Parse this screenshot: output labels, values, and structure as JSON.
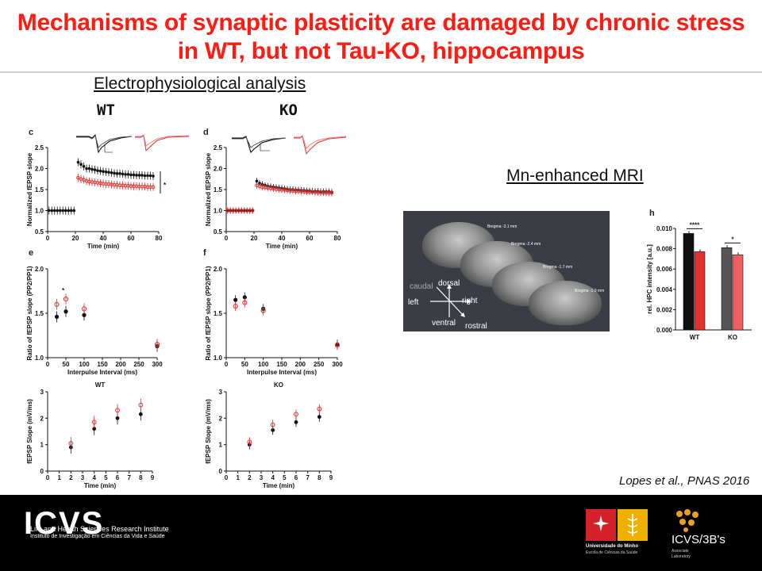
{
  "slide": {
    "title_line1": "Mechanisms of synaptic plasticity are damaged by chronic stress",
    "title_line2": "in WT, but not Tau-KO, hippocampus",
    "section_ephys": "Electrophysiological analysis",
    "section_mri": "Mn-enhanced MRI",
    "group_wt": "WT",
    "group_ko": "KO",
    "citation": "Lopes et al., PNAS 2016"
  },
  "mri": {
    "bregma_labels": [
      "Bregma -3.1 mm",
      "Bregma -2.4 mm",
      "Bregma -1.7 mm",
      "Bregma -1.0 mm"
    ],
    "orientation_labels": [
      "caudal",
      "dorsal",
      "left",
      "right",
      "ventral",
      "rostral"
    ]
  },
  "footer": {
    "icvs_logo_text": "ICVS",
    "icvs_line1": "Life and Health Sciences Research Institute",
    "icvs_line2": "Instituto de Investigação em Ciências da Vida e Saúde",
    "uminho_line1": "Universidade do Minho",
    "uminho_line2": "Escola de Ciências da Saúde",
    "icvs3bs_name": "ICVS/3B's",
    "icvs3bs_sub1": "Associate",
    "icvs3bs_sub2": "Laboratory"
  },
  "colors": {
    "title_red": "#ff1a12",
    "control": "#000000",
    "stress": "#e03030"
  },
  "chart_data": [
    {
      "panel": "c",
      "type": "scatter",
      "xlabel": "Time (min)",
      "ylabel": "Normalized fEPSP slope",
      "xlim": [
        0,
        80
      ],
      "ylim": [
        0.5,
        2.5
      ],
      "xticks": [
        "0",
        "20",
        "40",
        "60",
        "80"
      ],
      "yticks": [
        "0.5",
        "1.0",
        "1.5",
        "2.0",
        "2.5"
      ],
      "annotation": "*",
      "series": [
        {
          "color": "black",
          "x": [
            1,
            3,
            5,
            7,
            9,
            11,
            13,
            15,
            17,
            19,
            22,
            24,
            26,
            28,
            30,
            32,
            34,
            36,
            38,
            40,
            42,
            44,
            46,
            48,
            50,
            52,
            54,
            56,
            58,
            60,
            62,
            64,
            66,
            68,
            70,
            72,
            74,
            76
          ],
          "y": [
            1,
            1,
            1,
            1,
            1,
            1,
            1,
            1,
            1,
            1,
            2.15,
            2.1,
            2.05,
            2.0,
            2.0,
            1.98,
            1.97,
            1.95,
            1.94,
            1.93,
            1.92,
            1.91,
            1.9,
            1.89,
            1.88,
            1.88,
            1.87,
            1.86,
            1.86,
            1.85,
            1.85,
            1.84,
            1.84,
            1.84,
            1.83,
            1.83,
            1.83,
            1.82
          ]
        },
        {
          "color": "red",
          "x": [
            22,
            24,
            26,
            28,
            30,
            32,
            34,
            36,
            38,
            40,
            42,
            44,
            46,
            48,
            50,
            52,
            54,
            56,
            58,
            60,
            62,
            64,
            66,
            68,
            70,
            72,
            74,
            76
          ],
          "y": [
            1.78,
            1.75,
            1.73,
            1.7,
            1.69,
            1.68,
            1.67,
            1.66,
            1.65,
            1.64,
            1.63,
            1.63,
            1.62,
            1.61,
            1.61,
            1.6,
            1.6,
            1.59,
            1.59,
            1.58,
            1.58,
            1.58,
            1.57,
            1.57,
            1.57,
            1.56,
            1.56,
            1.56
          ]
        }
      ]
    },
    {
      "panel": "d",
      "type": "scatter",
      "xlabel": "Time (min)",
      "ylabel": "Normalized fEPSP slope",
      "xlim": [
        0,
        80
      ],
      "ylim": [
        0.5,
        2.5
      ],
      "xticks": [
        "0",
        "20",
        "40",
        "60",
        "80"
      ],
      "yticks": [
        "0.5",
        "1.0",
        "1.5",
        "2.0",
        "2.5"
      ],
      "series": [
        {
          "color": "black",
          "x": [
            1,
            3,
            5,
            7,
            9,
            11,
            13,
            15,
            17,
            19,
            22,
            24,
            26,
            28,
            30,
            32,
            34,
            36,
            38,
            40,
            42,
            44,
            46,
            48,
            50,
            52,
            54,
            56,
            58,
            60,
            62,
            64,
            66,
            68,
            70,
            72,
            74,
            76
          ],
          "y": [
            1,
            1,
            1,
            1,
            1,
            1,
            1,
            1,
            1,
            1,
            1.7,
            1.65,
            1.62,
            1.6,
            1.58,
            1.57,
            1.56,
            1.55,
            1.54,
            1.53,
            1.52,
            1.51,
            1.5,
            1.5,
            1.49,
            1.49,
            1.48,
            1.48,
            1.47,
            1.47,
            1.46,
            1.46,
            1.46,
            1.45,
            1.45,
            1.45,
            1.45,
            1.44
          ]
        },
        {
          "color": "red",
          "x": [
            1,
            3,
            5,
            7,
            9,
            11,
            13,
            15,
            17,
            19,
            22,
            24,
            26,
            28,
            30,
            32,
            34,
            36,
            38,
            40,
            42,
            44,
            46,
            48,
            50,
            52,
            54,
            56,
            58,
            60,
            62,
            64,
            66,
            68,
            70,
            72,
            74,
            76
          ],
          "y": [
            1,
            1,
            1,
            1,
            1,
            1,
            1,
            1,
            1,
            1,
            1.6,
            1.58,
            1.56,
            1.55,
            1.54,
            1.53,
            1.52,
            1.51,
            1.5,
            1.49,
            1.49,
            1.48,
            1.47,
            1.47,
            1.46,
            1.46,
            1.45,
            1.45,
            1.44,
            1.44,
            1.44,
            1.43,
            1.43,
            1.43,
            1.42,
            1.42,
            1.42,
            1.42
          ]
        }
      ]
    },
    {
      "panel": "e",
      "type": "scatter",
      "xlabel": "Interpulse Interval (ms)",
      "ylabel": "Ratio of fEPSP slope (PP2/PP1)",
      "xlim": [
        0,
        300
      ],
      "ylim": [
        1.0,
        2.0
      ],
      "xticks": [
        "0",
        "50",
        "100",
        "150",
        "200",
        "250",
        "300"
      ],
      "yticks": [
        "1.0",
        "1.5",
        "2.0"
      ],
      "annotation": "*",
      "series": [
        {
          "color": "black",
          "x": [
            25,
            50,
            100,
            300
          ],
          "y": [
            1.46,
            1.52,
            1.48,
            1.13
          ]
        },
        {
          "color": "red",
          "x": [
            25,
            50,
            100,
            300
          ],
          "y": [
            1.6,
            1.66,
            1.55,
            1.15
          ]
        }
      ]
    },
    {
      "panel": "f",
      "type": "scatter",
      "xlabel": "Interpulse Interval (ms)",
      "ylabel": "Ratio of fEPSP slope (PP2/PP1)",
      "xlim": [
        0,
        300
      ],
      "ylim": [
        1.0,
        2.0
      ],
      "xticks": [
        "0",
        "50",
        "100",
        "150",
        "200",
        "250",
        "300"
      ],
      "yticks": [
        "1.0",
        "1.5",
        "2.0"
      ],
      "series": [
        {
          "color": "black",
          "x": [
            25,
            50,
            100,
            300
          ],
          "y": [
            1.65,
            1.68,
            1.55,
            1.15
          ]
        },
        {
          "color": "red",
          "x": [
            25,
            50,
            100,
            300
          ],
          "y": [
            1.58,
            1.62,
            1.53,
            1.14
          ]
        }
      ]
    },
    {
      "panel": "wt-io",
      "type": "scatter",
      "title": "WT",
      "xlabel": "Time (min)",
      "ylabel": "fEPSP Slope (mV/ms)",
      "xlim": [
        0,
        9
      ],
      "ylim": [
        0,
        3
      ],
      "xticks": [
        "0",
        "1",
        "2",
        "3",
        "4",
        "5",
        "6",
        "7",
        "8",
        "9"
      ],
      "yticks": [
        "0",
        "1",
        "2",
        "3"
      ],
      "series": [
        {
          "color": "black",
          "x": [
            2,
            4,
            6,
            8
          ],
          "y": [
            0.9,
            1.6,
            2.0,
            2.15
          ]
        },
        {
          "color": "red",
          "x": [
            2,
            4,
            6,
            8
          ],
          "y": [
            1.05,
            1.85,
            2.3,
            2.5
          ]
        }
      ]
    },
    {
      "panel": "ko-io",
      "type": "scatter",
      "title": "KO",
      "xlabel": "Time (min)",
      "ylabel": "fEPSP Slope (mV/ms)",
      "xlim": [
        0,
        9
      ],
      "ylim": [
        0,
        3
      ],
      "xticks": [
        "0",
        "1",
        "2",
        "3",
        "4",
        "5",
        "6",
        "7",
        "8",
        "9"
      ],
      "yticks": [
        "0",
        "1",
        "2",
        "3"
      ],
      "series": [
        {
          "color": "black",
          "x": [
            2,
            4,
            6,
            8
          ],
          "y": [
            1.0,
            1.55,
            1.85,
            2.05
          ]
        },
        {
          "color": "red",
          "x": [
            2,
            4,
            6,
            8
          ],
          "y": [
            1.1,
            1.75,
            2.15,
            2.35
          ]
        }
      ]
    },
    {
      "panel": "h",
      "type": "bar",
      "ylabel": "rel. HPC intensity [a.u.]",
      "categories": [
        "WT",
        "KO"
      ],
      "ylim": [
        0,
        0.01
      ],
      "yticks": [
        "0.000",
        "0.002",
        "0.004",
        "0.006",
        "0.008",
        "0.010"
      ],
      "significance": [
        "****",
        "*"
      ],
      "series": [
        {
          "color": "black",
          "values": [
            0.0095,
            0.0081
          ]
        },
        {
          "color": "red",
          "values": [
            0.0077,
            0.0074
          ]
        }
      ]
    }
  ]
}
